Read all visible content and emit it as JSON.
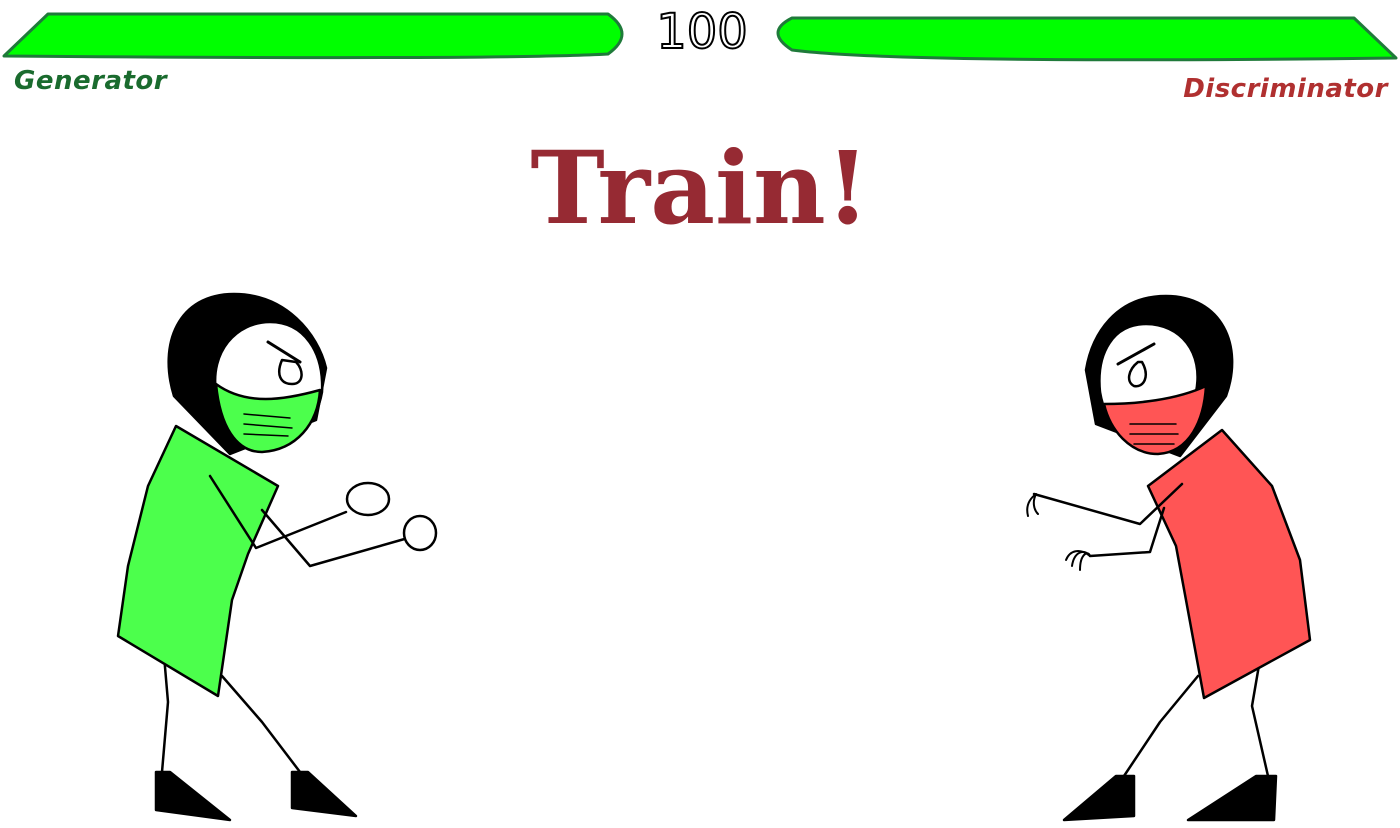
{
  "hud": {
    "timer": "100",
    "player_left": {
      "name": "Generator",
      "health_fraction": 1.0,
      "name_color": "#1a6b2e"
    },
    "player_right": {
      "name": "Discriminator",
      "health_fraction": 1.0,
      "name_color": "#b03030"
    },
    "health_fill_color": "#00ff00",
    "health_stroke_color": "#1f7a3a"
  },
  "banner": {
    "text": "Train!",
    "color": "#962a33"
  },
  "fighters": {
    "left": {
      "shirt_color": "#4cff4c",
      "mask_color": "#4cff4c",
      "pose": "fists-up"
    },
    "right": {
      "shirt_color": "#ff5555",
      "mask_color": "#ff5555",
      "pose": "claws-out"
    }
  }
}
